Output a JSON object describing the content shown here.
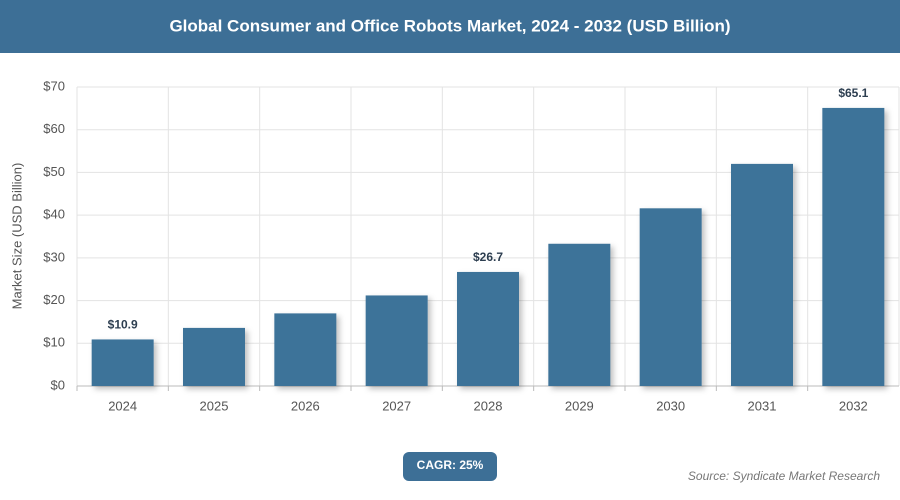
{
  "chart_data": {
    "type": "bar",
    "title": "Global Consumer and Office Robots Market, 2024 - 2032 (USD Billion)",
    "y_label": "Market Size (USD Billion)",
    "categories": [
      "2024",
      "2025",
      "2026",
      "2027",
      "2028",
      "2029",
      "2030",
      "2031",
      "2032"
    ],
    "values": [
      10.9,
      13.6,
      17.0,
      21.2,
      26.7,
      33.3,
      41.6,
      52.0,
      65.1
    ],
    "value_labels": [
      "$10.9",
      null,
      null,
      null,
      "$26.7",
      null,
      null,
      null,
      "$65.1"
    ],
    "color": "#3d7399",
    "ylim": [
      0,
      70
    ],
    "yticks": [
      {
        "value": 0,
        "label": "$0"
      },
      {
        "value": 10,
        "label": "$10"
      },
      {
        "value": 20,
        "label": "$20"
      },
      {
        "value": 30,
        "label": "$30"
      },
      {
        "value": 40,
        "label": "$40"
      },
      {
        "value": 50,
        "label": "$50"
      },
      {
        "value": 60,
        "label": "$60"
      },
      {
        "value": 70,
        "label": "$70"
      }
    ],
    "grid": true,
    "annotation": "CAGR: 25%",
    "source": "Source: Syndicate Market Research"
  }
}
